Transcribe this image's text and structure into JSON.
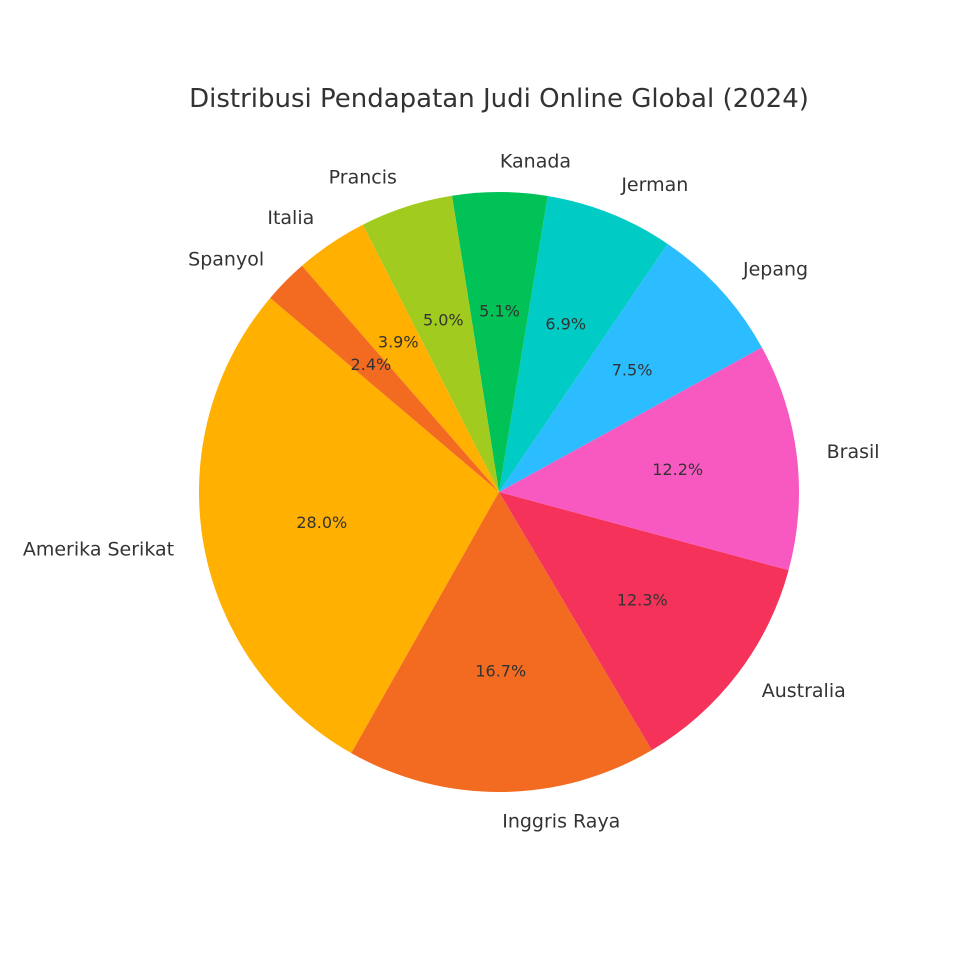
{
  "chart_data": {
    "type": "pie",
    "title": "Distribusi Pendapatan Judi Online Global (2024)",
    "slices": [
      {
        "label": "Amerika Serikat",
        "value": 28.0,
        "pct_text": "28.0%",
        "color": "#ffb000"
      },
      {
        "label": "Inggris Raya",
        "value": 16.7,
        "pct_text": "16.7%",
        "color": "#f26b21"
      },
      {
        "label": "Australia",
        "value": 12.3,
        "pct_text": "12.3%",
        "color": "#f5335a"
      },
      {
        "label": "Brasil",
        "value": 12.2,
        "pct_text": "12.2%",
        "color": "#f759c0"
      },
      {
        "label": "Jepang",
        "value": 7.5,
        "pct_text": "7.5%",
        "color": "#2bbdff"
      },
      {
        "label": "Jerman",
        "value": 6.9,
        "pct_text": "6.9%",
        "color": "#00cbc4"
      },
      {
        "label": "Kanada",
        "value": 5.1,
        "pct_text": "5.1%",
        "color": "#00c257"
      },
      {
        "label": "Prancis",
        "value": 5.0,
        "pct_text": "5.0%",
        "color": "#a1cb1f"
      },
      {
        "label": "Italia",
        "value": 3.9,
        "pct_text": "3.9%",
        "color": "#ffb000"
      },
      {
        "label": "Spanyol",
        "value": 2.4,
        "pct_text": "2.4%",
        "color": "#f26b21"
      }
    ]
  }
}
